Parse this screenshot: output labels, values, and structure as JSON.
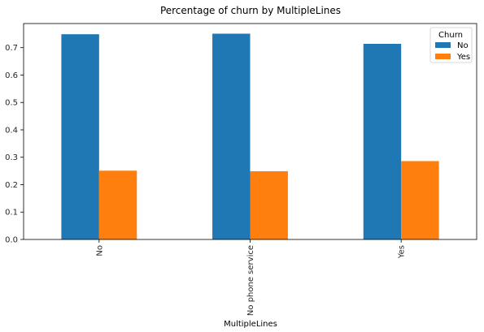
{
  "chart_data": {
    "type": "bar",
    "title": "Percentage of churn by MultipleLines",
    "xlabel": "MultipleLines",
    "ylabel": "",
    "categories": [
      "No",
      "No phone service",
      "Yes"
    ],
    "series": [
      {
        "name": "No",
        "values": [
          0.749,
          0.751,
          0.714
        ],
        "color": "#1f77b4"
      },
      {
        "name": "Yes",
        "values": [
          0.251,
          0.249,
          0.286
        ],
        "color": "#ff7f0e"
      }
    ],
    "ylim": [
      0,
      0.788
    ],
    "yticks": [
      "0.0",
      "0.1",
      "0.2",
      "0.3",
      "0.4",
      "0.5",
      "0.6",
      "0.7"
    ],
    "legend": {
      "title": "Churn",
      "position": "top-right"
    },
    "grid": false
  }
}
